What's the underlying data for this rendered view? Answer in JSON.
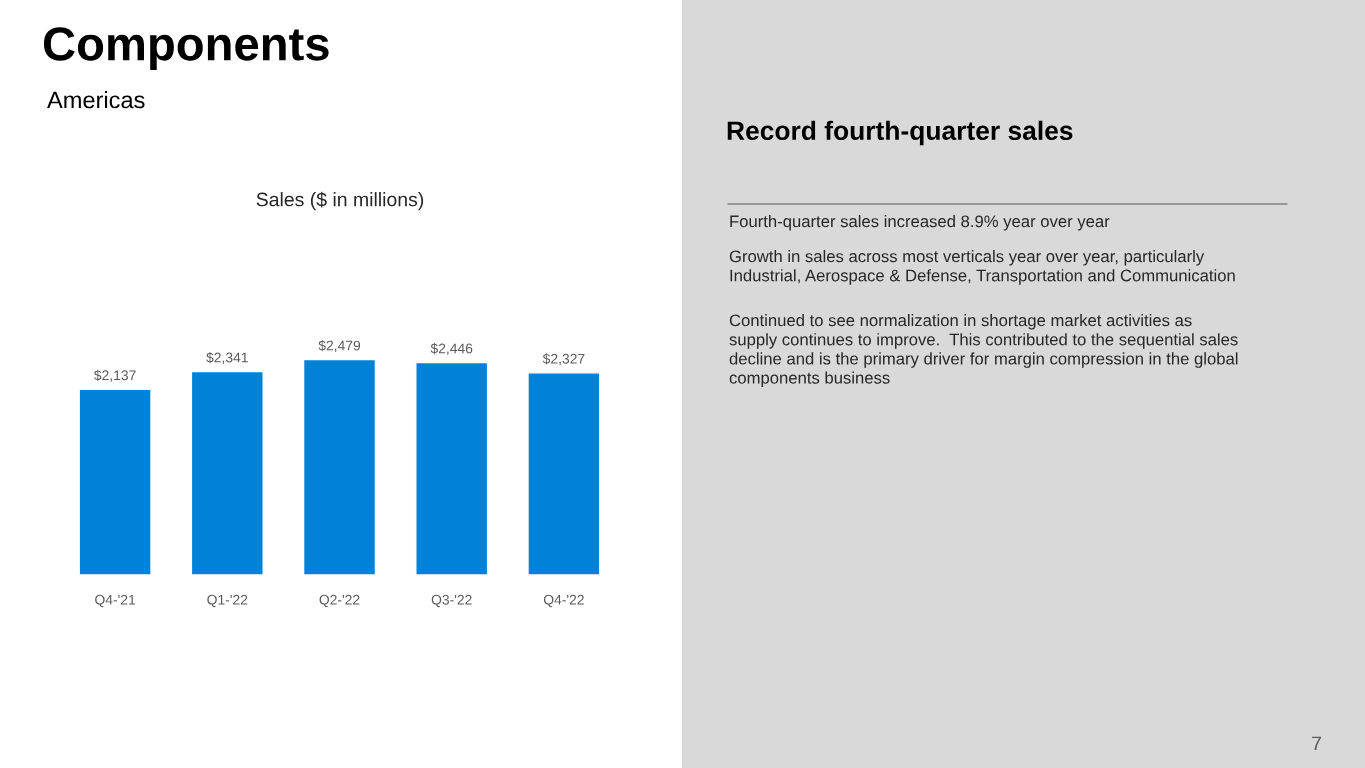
{
  "chart_data": {
    "type": "bar",
    "title": "Components",
    "subtitle": "Americas",
    "categories": [
      "Q4-'21",
      "Q1-'22",
      "Q2-'22",
      "Q3-'22",
      "Q4-'22"
    ],
    "values": [
      2137,
      2341,
      2479,
      2446,
      2327
    ],
    "value_labels": [
      "$2,137",
      "$2,341",
      "$2,479",
      "$2,446",
      "$2,327"
    ],
    "color": "#0083d6",
    "grid": false,
    "legend": false,
    "tick_labels": "x",
    "annotations": [
      "Sales ($ in millions)",
      "Record fourth-quarter sales",
      "Fourth-quarter sales increased 8.9% year over year",
      "Growth in sales across most verticals year over year, particularly\nIndustrial, Aerospace & Defense, Transportation and Communication",
      "Continued to see normalization in shortage market activities as\nsupply continues to improve.  This contributed to the sequential sales\ndecline and is the primary driver for margin compression in the global\ncomponents business",
      "7"
    ]
  }
}
